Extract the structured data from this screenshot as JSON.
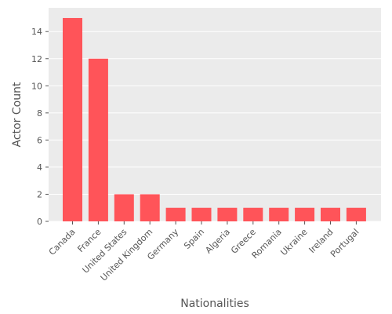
{
  "chart_data": {
    "type": "bar",
    "title": "",
    "xlabel": "Nationalities",
    "ylabel": "Actor Count",
    "categories": [
      "Canada",
      "France",
      "United States",
      "United Kingdom",
      "Germany",
      "Spain",
      "Algeria",
      "Greece",
      "Romania",
      "Ukraine",
      "Ireland",
      "Portugal"
    ],
    "values": [
      15,
      12,
      2,
      2,
      1,
      1,
      1,
      1,
      1,
      1,
      1,
      1
    ],
    "ylim": [
      0,
      15.75
    ],
    "yticks": [
      0,
      2,
      4,
      6,
      8,
      10,
      12,
      14
    ],
    "grid": true,
    "legend": "none",
    "colors": {
      "bar": "#ff5459",
      "background": "#ebebeb",
      "grid": "#ffffff",
      "text": "#555555"
    }
  }
}
